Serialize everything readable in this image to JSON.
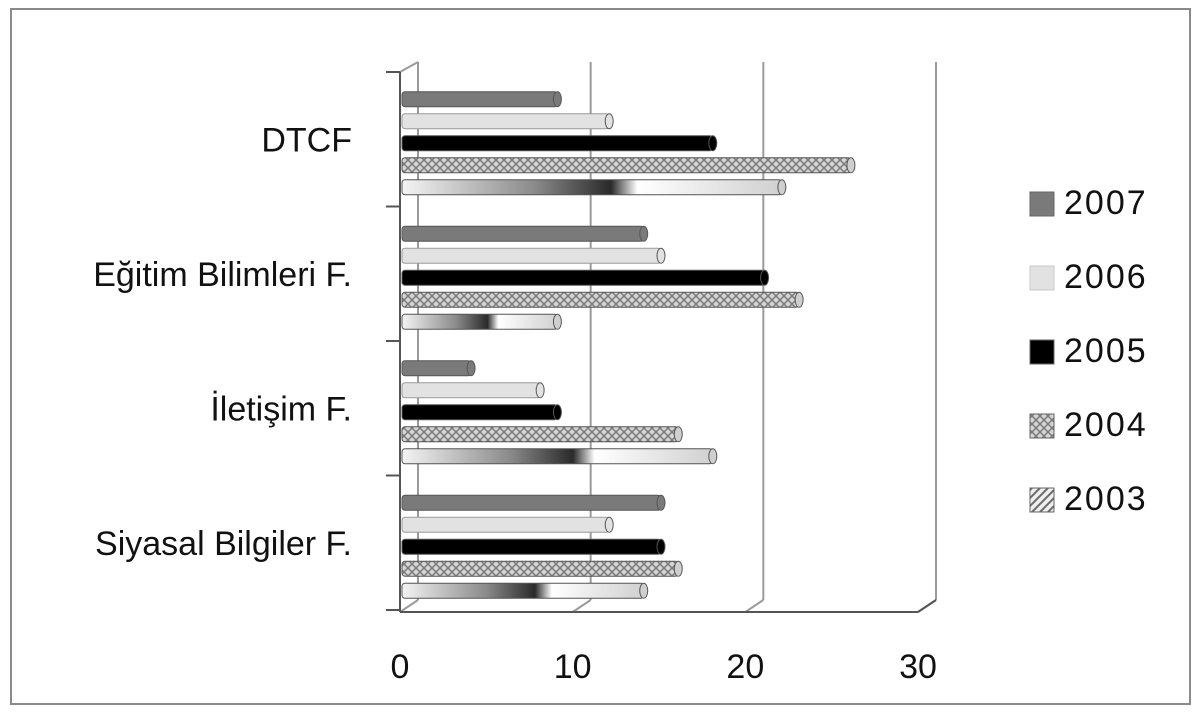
{
  "chart_data": {
    "type": "bar",
    "orientation": "horizontal",
    "categories": [
      "DTCF",
      "Eğitim Bilimleri F.",
      "İletişim F.",
      "Siyasal Bilgiler F."
    ],
    "series": [
      {
        "name": "2007",
        "values": [
          9,
          14,
          4,
          15
        ],
        "color": "#7a7a7a",
        "pattern": "solid"
      },
      {
        "name": "2006",
        "values": [
          12,
          15,
          8,
          12
        ],
        "color": "#e2e2e2",
        "pattern": "solid"
      },
      {
        "name": "2005",
        "values": [
          18,
          21,
          9,
          15
        ],
        "color": "#000000",
        "pattern": "solid"
      },
      {
        "name": "2004",
        "values": [
          26,
          23,
          16,
          16
        ],
        "color": "#b8b8b8",
        "pattern": "crosshatch"
      },
      {
        "name": "2003",
        "values": [
          22,
          9,
          18,
          14
        ],
        "color": "#9a9a9a",
        "pattern": "diagonal"
      }
    ],
    "xaxis": {
      "ticks": [
        "0",
        "10",
        "20",
        "30"
      ]
    },
    "xlim": [
      0,
      30
    ],
    "grid": true,
    "legend_position": "right",
    "title": "",
    "xlabel": "",
    "ylabel": ""
  }
}
